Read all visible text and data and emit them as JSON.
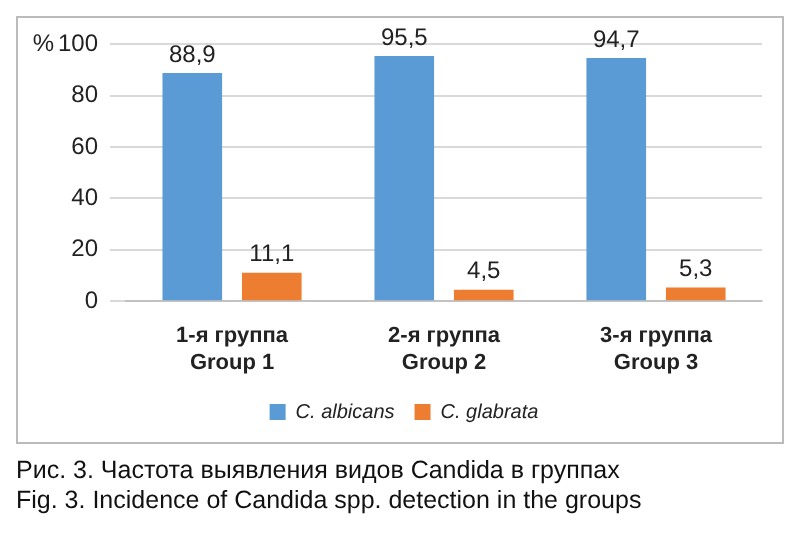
{
  "chart_data": {
    "type": "bar",
    "ylabel": "%",
    "categories": [
      "1-я группа\nGroup 1",
      "2-я группа\nGroup 2",
      "3-я группа\nGroup 3"
    ],
    "series": [
      {
        "name": "C. albicans",
        "color": "#5b9bd5",
        "values": [
          88.9,
          95.5,
          94.7
        ],
        "value_labels": [
          "88,9",
          "95,5",
          "94,7"
        ]
      },
      {
        "name": "C. glabrata",
        "color": "#ed7d31",
        "values": [
          11.1,
          4.5,
          5.3
        ],
        "value_labels": [
          "11,1",
          "4,5",
          "5,3"
        ]
      }
    ],
    "ylim": [
      0,
      100
    ],
    "yticks": [
      0,
      20,
      40,
      60,
      80,
      100
    ],
    "grid": "y",
    "legend": "bottom",
    "annotations": [
      "Рис. 3. Частота выявления видов Candida в группах",
      "Fig. 3. Incidence of Candida spp. detection in the groups"
    ]
  }
}
